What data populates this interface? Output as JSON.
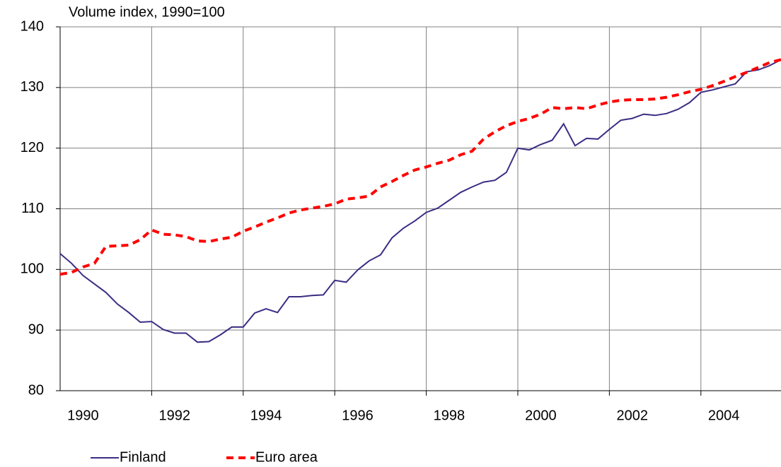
{
  "chart_data": {
    "type": "line",
    "title": "Volume index, 1990=100",
    "x": [
      1990,
      1990.25,
      1990.5,
      1990.75,
      1991,
      1991.25,
      1991.5,
      1991.75,
      1992,
      1992.25,
      1992.5,
      1992.75,
      1993,
      1993.25,
      1993.5,
      1993.75,
      1994,
      1994.25,
      1994.5,
      1994.75,
      1995,
      1995.25,
      1995.5,
      1995.75,
      1996,
      1996.25,
      1996.5,
      1996.75,
      1997,
      1997.25,
      1997.5,
      1997.75,
      1998,
      1998.25,
      1998.5,
      1998.75,
      1999,
      1999.25,
      1999.5,
      1999.75,
      2000,
      2000.25,
      2000.5,
      2000.75,
      2001,
      2001.25,
      2001.5,
      2001.75,
      2002,
      2002.25,
      2002.5,
      2002.75,
      2003,
      2003.25,
      2003.5,
      2003.75,
      2004,
      2004.25,
      2004.5,
      2004.75,
      2005,
      2005.25,
      2005.5,
      2005.75
    ],
    "series": [
      {
        "name": "Finland",
        "color": "#3b2d84",
        "dash": false,
        "values": [
          102.6,
          101.0,
          99.0,
          97.6,
          96.2,
          94.3,
          92.9,
          91.3,
          91.4,
          90.1,
          89.5,
          89.5,
          88.0,
          88.1,
          89.2,
          90.5,
          90.5,
          92.8,
          93.5,
          92.9,
          95.5,
          95.5,
          95.7,
          95.8,
          98.2,
          97.9,
          99.9,
          101.4,
          102.4,
          105.2,
          106.8,
          108.0,
          109.4,
          110.1,
          111.4,
          112.7,
          113.6,
          114.4,
          114.7,
          116.0,
          120.0,
          119.7,
          120.6,
          121.3,
          124.0,
          120.4,
          121.6,
          121.5,
          123.1,
          124.6,
          124.9,
          125.6,
          125.4,
          125.7,
          126.4,
          127.5,
          129.2,
          129.6,
          130.1,
          130.6,
          132.6,
          132.9,
          133.6,
          134.6
        ]
      },
      {
        "name": "Euro area",
        "color": "#ff0000",
        "dash": true,
        "values": [
          99.2,
          99.5,
          100.4,
          101.0,
          103.8,
          103.9,
          104.0,
          104.9,
          106.5,
          105.8,
          105.7,
          105.4,
          104.7,
          104.6,
          105.0,
          105.3,
          106.3,
          107.0,
          107.8,
          108.5,
          109.3,
          109.8,
          110.1,
          110.4,
          110.8,
          111.6,
          111.8,
          112.1,
          113.6,
          114.5,
          115.5,
          116.4,
          116.9,
          117.5,
          118.0,
          118.9,
          119.5,
          121.5,
          122.7,
          123.7,
          124.4,
          124.9,
          125.6,
          126.7,
          126.5,
          126.7,
          126.5,
          127.1,
          127.6,
          127.9,
          128.0,
          128.0,
          128.1,
          128.4,
          128.8,
          129.3,
          129.7,
          130.3,
          131.0,
          131.8,
          132.5,
          133.3,
          134.1,
          134.6
        ]
      }
    ],
    "xlim": [
      1990,
      2005.75
    ],
    "xticks": [
      {
        "value": 1990.5,
        "label": "1990"
      },
      {
        "value": 1992.5,
        "label": "1992"
      },
      {
        "value": 1994.5,
        "label": "1994"
      },
      {
        "value": 1996.5,
        "label": "1996"
      },
      {
        "value": 1998.5,
        "label": "1998"
      },
      {
        "value": 2000.5,
        "label": "2000"
      },
      {
        "value": 2002.5,
        "label": "2002"
      },
      {
        "value": 2004.5,
        "label": "2004"
      }
    ],
    "x_gridlines": [
      1992,
      1994,
      1996,
      1998,
      2000,
      2002,
      2004
    ],
    "ylim": [
      80,
      140
    ],
    "yticks": [
      80,
      90,
      100,
      110,
      120,
      130,
      140
    ],
    "grid": true,
    "legend": "bottom-left"
  }
}
